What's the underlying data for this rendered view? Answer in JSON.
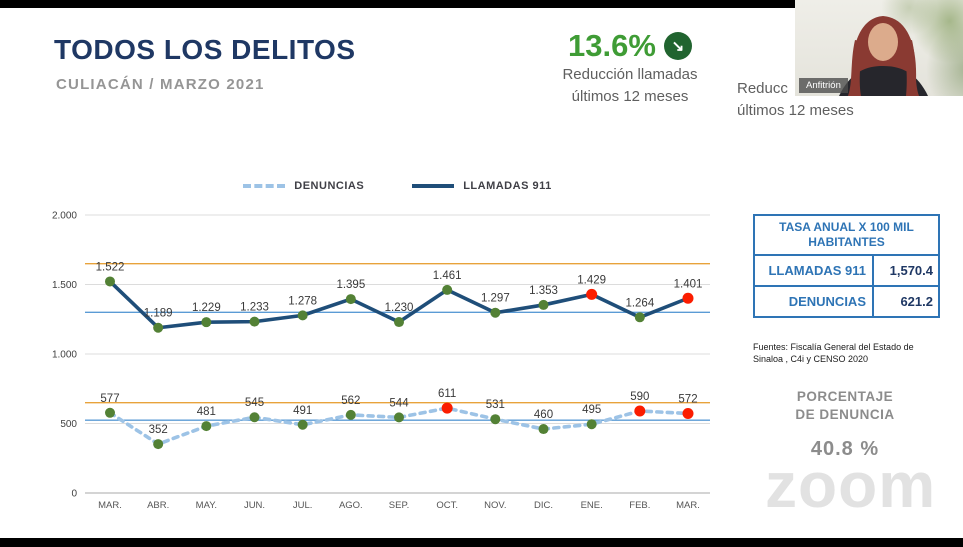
{
  "header": {
    "title": "TODOS LOS DELITOS",
    "subtitle": "CULIACÁN / MARZO 2021"
  },
  "kpi": {
    "value": "13.6%",
    "icon_glyph": "↘",
    "line1": "Reducción llamadas",
    "line2": "últimos 12 meses"
  },
  "kpi2": {
    "line1": "Reducc",
    "line2": "últimos 12 meses"
  },
  "webcam": {
    "label": "Anfitrión"
  },
  "legend": [
    {
      "label": "DENUNCIAS"
    },
    {
      "label": "LLAMADAS 911"
    }
  ],
  "chart_data": {
    "type": "line",
    "categories": [
      "MAR.",
      "ABR.",
      "MAY.",
      "JUN.",
      "JUL.",
      "AGO.",
      "SEP.",
      "OCT.",
      "NOV.",
      "DIC.",
      "ENE.",
      "FEB.",
      "MAR."
    ],
    "series": [
      {
        "name": "LLAMADAS 911",
        "values": [
          1522,
          1189,
          1229,
          1233,
          1278,
          1395,
          1230,
          1461,
          1297,
          1353,
          1429,
          1264,
          1401
        ],
        "labels": [
          "1.522",
          "1.189",
          "1.229",
          "1.233",
          "1.278",
          "1.395",
          "1.230",
          "1.461",
          "1.297",
          "1.353",
          "1.429",
          "1.264",
          "1.401"
        ],
        "color": "#1f4e79",
        "style": "solid",
        "point_colors": [
          "green",
          "green",
          "green",
          "green",
          "green",
          "green",
          "green",
          "green",
          "green",
          "green",
          "red",
          "green",
          "red"
        ]
      },
      {
        "name": "DENUNCIAS",
        "values": [
          577,
          352,
          481,
          545,
          491,
          562,
          544,
          611,
          531,
          460,
          495,
          590,
          572
        ],
        "labels": [
          "577",
          "352",
          "481",
          "545",
          "491",
          "562",
          "544",
          "611",
          "531",
          "460",
          "495",
          "590",
          "572"
        ],
        "color": "#9dc3e6",
        "style": "dashed",
        "point_colors": [
          "green",
          "green",
          "green",
          "green",
          "green",
          "green",
          "green",
          "red",
          "green",
          "green",
          "green",
          "red",
          "red"
        ]
      }
    ],
    "reference_lines": [
      {
        "value": 1650,
        "color": "#e8a33b"
      },
      {
        "value": 1300,
        "color": "#5b9bd5"
      },
      {
        "value": 650,
        "color": "#e8a33b"
      },
      {
        "value": 524,
        "color": "#5b9bd5"
      }
    ],
    "y_ticks": [
      0,
      500,
      1000,
      1500,
      2000
    ],
    "y_tick_labels": [
      "0",
      "500",
      "1.000",
      "1.500",
      "2.000"
    ],
    "ylim": [
      0,
      2000
    ],
    "grid": true,
    "legend_position": "top",
    "point_green": "#538135",
    "point_red": "#fb1d00"
  },
  "table": {
    "header": "TASA ANUAL X 100 MIL HABITANTES",
    "rows": [
      {
        "label": "LLAMADAS 911",
        "value": "1,570.4"
      },
      {
        "label": "DENUNCIAS",
        "value": "621.2"
      }
    ]
  },
  "sources": "Fuentes: Fiscalía General del Estado de Sinaloa , C4i y CENSO  2020",
  "percentage": {
    "line1": "PORCENTAJE",
    "line2": "DE DENUNCIA",
    "value": "40.8 %"
  },
  "watermark": "zoom"
}
